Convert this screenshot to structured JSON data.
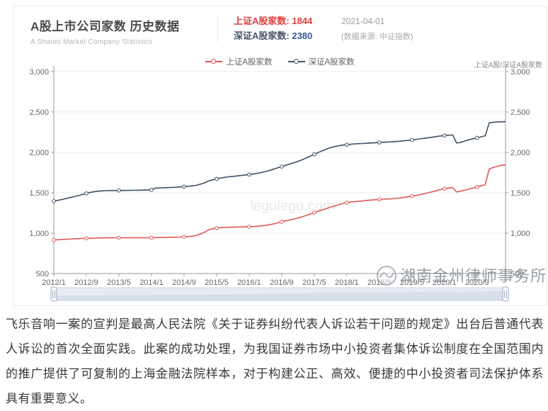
{
  "card": {
    "title": "A股上市公司家数 历史数据",
    "subtitle": "A Shares Market Company Statistics",
    "stats": {
      "sh_label": "上证A股家数:",
      "sh_value": "1844",
      "date": "2021-04-01",
      "sz_label": "深证A股家数:",
      "sz_value": "2380",
      "source": "(数据来源: 中证指数)"
    },
    "legend": [
      {
        "label": "上证A股家数",
        "color": "#e15858"
      },
      {
        "label": "深证A股家数",
        "color": "#3f5166"
      }
    ],
    "axis_title": "上证A股/深证A股家数",
    "watermark_center": "legulegu.com",
    "watermark_brand": "湖南金州律师事务所"
  },
  "chart_data": {
    "type": "line",
    "title": "A股上市公司家数 历史数据",
    "grid": true,
    "legend_position": "top",
    "ylim": [
      500,
      3000
    ],
    "y_ticks": [
      "500",
      "1,000",
      "1,500",
      "2,000",
      "2,500",
      "3,000"
    ],
    "x_tick_labels": [
      "2012/1",
      "2012/9",
      "2013/5",
      "2014/1",
      "2014/9",
      "2015/5",
      "2016/1",
      "2016/9",
      "2017/5",
      "2018/1",
      "2018/9",
      "2019/5",
      "2020/1",
      "2020/9"
    ],
    "x": [
      "2012/1",
      "2012/2",
      "2012/3",
      "2012/4",
      "2012/5",
      "2012/6",
      "2012/7",
      "2012/8",
      "2012/9",
      "2012/10",
      "2012/11",
      "2012/12",
      "2013/1",
      "2013/2",
      "2013/3",
      "2013/4",
      "2013/5",
      "2013/6",
      "2013/7",
      "2013/8",
      "2013/9",
      "2013/10",
      "2013/11",
      "2013/12",
      "2014/1",
      "2014/2",
      "2014/3",
      "2014/4",
      "2014/5",
      "2014/6",
      "2014/7",
      "2014/8",
      "2014/9",
      "2014/10",
      "2014/11",
      "2014/12",
      "2015/1",
      "2015/2",
      "2015/3",
      "2015/4",
      "2015/5",
      "2015/6",
      "2015/7",
      "2015/8",
      "2015/9",
      "2015/10",
      "2015/11",
      "2015/12",
      "2016/1",
      "2016/2",
      "2016/3",
      "2016/4",
      "2016/5",
      "2016/6",
      "2016/7",
      "2016/8",
      "2016/9",
      "2016/10",
      "2016/11",
      "2016/12",
      "2017/1",
      "2017/2",
      "2017/3",
      "2017/4",
      "2017/5",
      "2017/6",
      "2017/7",
      "2017/8",
      "2017/9",
      "2017/10",
      "2017/11",
      "2017/12",
      "2018/1",
      "2018/2",
      "2018/3",
      "2018/4",
      "2018/5",
      "2018/6",
      "2018/7",
      "2018/8",
      "2018/9",
      "2018/10",
      "2018/11",
      "2018/12",
      "2019/1",
      "2019/2",
      "2019/3",
      "2019/4",
      "2019/5",
      "2019/6",
      "2019/7",
      "2019/8",
      "2019/9",
      "2019/10",
      "2019/11",
      "2019/12",
      "2020/1",
      "2020/2",
      "2020/3",
      "2020/4",
      "2020/5",
      "2020/6",
      "2020/7",
      "2020/8",
      "2020/9",
      "2020/10",
      "2020/11",
      "2020/12",
      "2021/1",
      "2021/2",
      "2021/3",
      "2021/4"
    ],
    "series": [
      {
        "name": "上证A股家数",
        "color": "#e15858",
        "values": [
          915,
          918,
          921,
          924,
          927,
          930,
          932,
          934,
          936,
          938,
          939,
          940,
          941,
          941,
          942,
          942,
          942,
          942,
          942,
          942,
          942,
          942,
          942,
          943,
          944,
          945,
          946,
          947,
          948,
          949,
          950,
          952,
          955,
          958,
          962,
          970,
          990,
          1010,
          1040,
          1055,
          1062,
          1068,
          1070,
          1072,
          1074,
          1075,
          1076,
          1078,
          1080,
          1082,
          1085,
          1090,
          1096,
          1104,
          1114,
          1126,
          1140,
          1152,
          1162,
          1175,
          1188,
          1202,
          1218,
          1236,
          1255,
          1272,
          1288,
          1305,
          1322,
          1338,
          1352,
          1368,
          1378,
          1385,
          1390,
          1395,
          1400,
          1405,
          1410,
          1414,
          1418,
          1421,
          1423,
          1425,
          1430,
          1435,
          1442,
          1450,
          1458,
          1466,
          1476,
          1488,
          1500,
          1512,
          1525,
          1540,
          1550,
          1558,
          1565,
          1510,
          1520,
          1532,
          1545,
          1558,
          1572,
          1586,
          1600,
          1795,
          1812,
          1828,
          1840,
          1844
        ]
      },
      {
        "name": "深证A股家数",
        "color": "#3f5166",
        "values": [
          1395,
          1406,
          1417,
          1428,
          1440,
          1452,
          1464,
          1478,
          1492,
          1505,
          1514,
          1520,
          1524,
          1526,
          1527,
          1528,
          1528,
          1529,
          1529,
          1530,
          1531,
          1532,
          1533,
          1534,
          1536,
          1558,
          1560,
          1562,
          1564,
          1566,
          1568,
          1572,
          1576,
          1580,
          1585,
          1592,
          1605,
          1622,
          1645,
          1660,
          1672,
          1682,
          1690,
          1697,
          1703,
          1708,
          1714,
          1720,
          1726,
          1732,
          1740,
          1750,
          1762,
          1776,
          1792,
          1808,
          1824,
          1840,
          1855,
          1870,
          1888,
          1908,
          1930,
          1952,
          1975,
          1998,
          2020,
          2040,
          2058,
          2072,
          2082,
          2090,
          2095,
          2100,
          2105,
          2108,
          2110,
          2113,
          2116,
          2119,
          2122,
          2125,
          2128,
          2131,
          2134,
          2138,
          2143,
          2148,
          2154,
          2160,
          2167,
          2174,
          2181,
          2188,
          2196,
          2203,
          2208,
          2212,
          2215,
          2115,
          2125,
          2140,
          2155,
          2168,
          2180,
          2192,
          2205,
          2365,
          2372,
          2376,
          2379,
          2380
        ]
      }
    ]
  },
  "paragraph": "飞乐音响一案的宣判是最高人民法院《关于证券纠纷代表人诉讼若干问题的规定》出台后普通代表人诉讼的首次全面实践。此案的成功处理，为我国证券市场中小投资者集体诉讼制度在全国范围内的推广提供了可复制的上海金融法院样本，对于构建公正、高效、便捷的中小投资者司法保护体系具有重要意义。"
}
